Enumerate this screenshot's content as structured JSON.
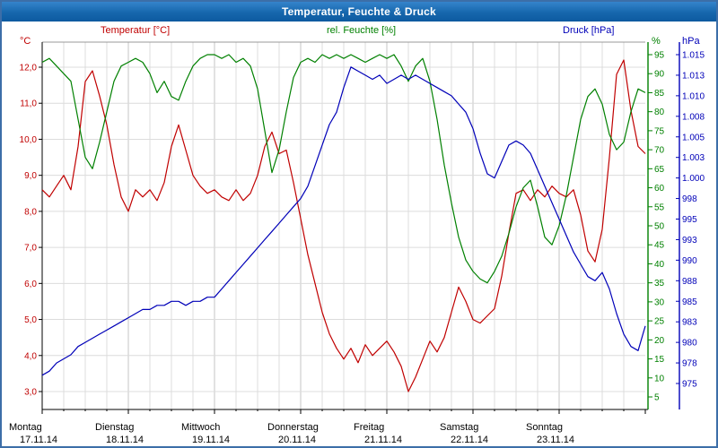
{
  "window": {
    "title": "Temperatur, Feuchte & Druck"
  },
  "labels": {
    "temperature": "Temperatur [°C]",
    "humidity": "rel. Feuchte [%]",
    "pressure": "Druck [hPa]",
    "unit_left": "°C",
    "unit_right_pct": "%",
    "unit_right_hpa": "hPa"
  },
  "colors": {
    "titlebar": "#1667ad",
    "temperature": "#c00000",
    "humidity": "#008000",
    "pressure": "#0000b8",
    "grid_minor": "#dcdcdc",
    "grid_day": "#c4c4c4",
    "axis_black": "#000000"
  },
  "chart_data": {
    "type": "line",
    "title": "Temperatur, Feuchte & Druck",
    "x_unit": "hours",
    "x_range": [
      0,
      168
    ],
    "grid": true,
    "days": [
      {
        "name": "Montag",
        "date": "17.11.14"
      },
      {
        "name": "Dienstag",
        "date": "18.11.14"
      },
      {
        "name": "Mittwoch",
        "date": "19.11.14"
      },
      {
        "name": "Donnerstag",
        "date": "20.11.14"
      },
      {
        "name": "Freitag",
        "date": "21.11.14"
      },
      {
        "name": "Samstag",
        "date": "22.11.14"
      },
      {
        "name": "Sonntag",
        "date": "23.11.14"
      }
    ],
    "axes": {
      "left": {
        "unit": "°C",
        "color": "#c00000",
        "labels": [
          "12,0",
          "11,0",
          "10,0",
          "9,0",
          "8,0",
          "7,0",
          "6,0",
          "5,0",
          "4,0",
          "3,0"
        ],
        "values": [
          12,
          11,
          10,
          9,
          8,
          7,
          6,
          5,
          4,
          3
        ],
        "range": [
          2.5,
          12.75
        ]
      },
      "right_pct": {
        "unit": "%",
        "color": "#008000",
        "values": [
          95,
          90,
          85,
          80,
          75,
          70,
          65,
          60,
          55,
          50,
          45,
          40,
          35,
          30,
          25,
          20,
          15,
          10,
          5
        ],
        "range": [
          0,
          100
        ]
      },
      "right_hpa": {
        "unit": "hPa",
        "color": "#0000b8",
        "labels": [
          "1.015",
          "1.013",
          "1.010",
          "1.008",
          "1.005",
          "1.003",
          "1.000",
          "998",
          "995",
          "993",
          "990",
          "988",
          "985",
          "983",
          "980",
          "978",
          "975"
        ],
        "range": [
          975,
          1015
        ]
      }
    },
    "series": [
      {
        "key": "temperature",
        "name": "Temperatur [°C]",
        "color": "#c00000",
        "axis": "left",
        "x_step_hours": 2,
        "values": [
          8.6,
          8.4,
          8.7,
          9.0,
          8.6,
          9.8,
          11.6,
          11.9,
          11.2,
          10.4,
          9.3,
          8.4,
          8.0,
          8.6,
          8.4,
          8.6,
          8.3,
          8.8,
          9.8,
          10.4,
          9.7,
          9.0,
          8.7,
          8.5,
          8.6,
          8.4,
          8.3,
          8.6,
          8.3,
          8.5,
          9.0,
          9.8,
          10.2,
          9.6,
          9.7,
          8.8,
          7.8,
          6.8,
          6.0,
          5.2,
          4.6,
          4.2,
          3.9,
          4.2,
          3.8,
          4.3,
          4.0,
          4.2,
          4.4,
          4.1,
          3.7,
          3.0,
          3.4,
          3.9,
          4.4,
          4.1,
          4.5,
          5.2,
          5.9,
          5.5,
          5.0,
          4.9,
          5.1,
          5.3,
          6.2,
          7.4,
          8.5,
          8.6,
          8.3,
          8.6,
          8.4,
          8.7,
          8.5,
          8.4,
          8.6,
          7.9,
          6.9,
          6.6,
          7.5,
          9.5,
          11.8,
          12.2,
          10.8,
          9.8,
          9.6
        ]
      },
      {
        "key": "humidity",
        "name": "rel. Feuchte [%]",
        "color": "#008000",
        "axis": "right_pct",
        "x_step_hours": 2,
        "values": [
          93,
          94,
          92,
          90,
          88,
          78,
          68,
          65,
          72,
          80,
          88,
          92,
          93,
          94,
          93,
          90,
          85,
          88,
          84,
          83,
          88,
          92,
          94,
          95,
          95,
          94,
          95,
          93,
          94,
          92,
          86,
          75,
          64,
          70,
          80,
          89,
          93,
          94,
          93,
          95,
          94,
          95,
          94,
          95,
          94,
          93,
          94,
          95,
          94,
          95,
          92,
          88,
          92,
          94,
          88,
          78,
          66,
          56,
          47,
          41,
          38,
          36,
          35,
          38,
          42,
          48,
          55,
          60,
          62,
          55,
          47,
          45,
          50,
          58,
          68,
          78,
          84,
          86,
          82,
          74,
          70,
          72,
          80,
          86,
          85
        ]
      },
      {
        "key": "pressure",
        "name": "Druck [hPa]",
        "color": "#0000b8",
        "axis": "right_hpa",
        "x_step_hours": 2,
        "values": [
          976,
          976.5,
          977.5,
          978,
          978.5,
          979.5,
          980,
          980.5,
          981,
          981.5,
          982,
          982.5,
          983,
          983.5,
          984,
          984,
          984.5,
          984.5,
          985,
          985,
          984.5,
          985,
          985,
          985.5,
          985.5,
          986.5,
          987.5,
          988.5,
          989.5,
          990.5,
          991.5,
          992.5,
          993.5,
          994.5,
          995.5,
          996.5,
          997.5,
          999,
          1001.5,
          1004,
          1006.5,
          1008,
          1011,
          1013.5,
          1013,
          1012.5,
          1012,
          1012.5,
          1011.5,
          1012,
          1012.5,
          1012,
          1012.5,
          1012,
          1011.5,
          1011,
          1010.5,
          1010,
          1009,
          1008,
          1006,
          1003,
          1000.5,
          1000,
          1002,
          1004,
          1004.5,
          1004,
          1003,
          1001,
          999,
          997,
          995,
          993,
          991,
          989.5,
          988,
          987.5,
          988.5,
          986.5,
          983.5,
          981,
          979.5,
          979,
          982
        ]
      }
    ]
  }
}
